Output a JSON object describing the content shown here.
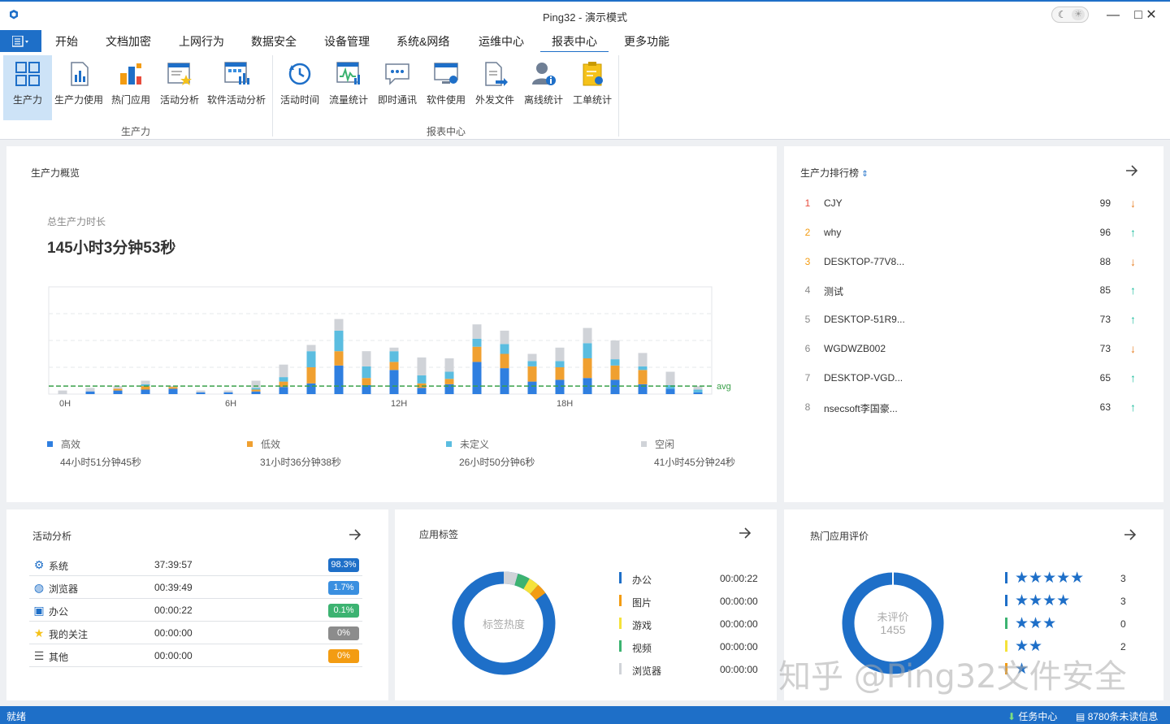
{
  "window": {
    "title": "Ping32 - 演示模式"
  },
  "menu": {
    "tabs": [
      {
        "label": "开始"
      },
      {
        "label": "文档加密"
      },
      {
        "label": "上网行为"
      },
      {
        "label": "数据安全"
      },
      {
        "label": "设备管理"
      },
      {
        "label": "系统&网络"
      },
      {
        "label": "运维中心"
      },
      {
        "label": "报表中心"
      },
      {
        "label": "更多功能"
      }
    ],
    "active": "报表中心"
  },
  "ribbon": {
    "groups": [
      {
        "label": "生产力",
        "buttons": [
          {
            "label": "生产力",
            "icon": "grid-icon"
          },
          {
            "label": "生产力使用",
            "icon": "report-bar-icon"
          },
          {
            "label": "热门应用",
            "icon": "hot-app-icon"
          },
          {
            "label": "活动分析",
            "icon": "activity-star-icon"
          },
          {
            "label": "软件活动分析",
            "icon": "software-activity-icon"
          }
        ]
      },
      {
        "label": "报表中心",
        "buttons": [
          {
            "label": "活动时间",
            "icon": "clock-icon"
          },
          {
            "label": "流量统计",
            "icon": "traffic-icon"
          },
          {
            "label": "即时通讯",
            "icon": "chat-icon"
          },
          {
            "label": "软件使用",
            "icon": "software-use-icon"
          },
          {
            "label": "外发文件",
            "icon": "file-send-icon"
          },
          {
            "label": "离线统计",
            "icon": "offline-user-icon"
          },
          {
            "label": "工单统计",
            "icon": "ticket-icon"
          }
        ]
      }
    ]
  },
  "overview": {
    "title": "生产力概览",
    "subtitle": "总生产力时长",
    "total": "145小时3分钟53秒",
    "legend": [
      {
        "name": "高效",
        "value": "44小时51分钟45秒",
        "color": "#2f7fe0"
      },
      {
        "name": "低效",
        "value": "31小时36分钟38秒",
        "color": "#f0a030"
      },
      {
        "name": "未定义",
        "value": "26小时50分钟6秒",
        "color": "#5bbde0"
      },
      {
        "name": "空闲",
        "value": "41小时45分钟24秒",
        "color": "#d0d3d8"
      }
    ]
  },
  "chart_data": {
    "type": "bar",
    "stacked": true,
    "x": [
      0,
      1,
      2,
      3,
      4,
      5,
      6,
      7,
      8,
      9,
      10,
      11,
      12,
      13,
      14,
      15,
      16,
      17,
      18,
      19,
      20,
      21,
      22,
      23
    ],
    "x_tick_labels": [
      "0H",
      "6H",
      "12H",
      "18H"
    ],
    "series": [
      {
        "name": "高效",
        "color": "#2f7fe0",
        "values": [
          0,
          0.3,
          0.4,
          0.5,
          0.6,
          0.2,
          0.2,
          0.3,
          0.8,
          1.2,
          3.2,
          1.0,
          2.7,
          0.7,
          1.1,
          3.6,
          2.9,
          1.4,
          1.6,
          1.8,
          1.6,
          1.1,
          0.6,
          0.2
        ]
      },
      {
        "name": "低效",
        "color": "#f0a030",
        "values": [
          0,
          0,
          0.2,
          0.4,
          0.2,
          0,
          0,
          0.2,
          0.6,
          1.8,
          1.6,
          0.8,
          0.9,
          0.5,
          0.6,
          1.7,
          1.6,
          1.7,
          1.4,
          2.2,
          1.6,
          1.6,
          0,
          0
        ]
      },
      {
        "name": "未定义",
        "color": "#5bbde0",
        "values": [
          0,
          0,
          0,
          0.2,
          0,
          0,
          0,
          0.2,
          0.5,
          1.8,
          2.3,
          1.3,
          1.2,
          0.9,
          0.8,
          0.9,
          1.1,
          0.6,
          0.7,
          1.7,
          0.7,
          0.4,
          0.4,
          0.3
        ]
      },
      {
        "name": "空闲",
        "color": "#d0d3d8",
        "values": [
          0.4,
          0.4,
          0.3,
          0.4,
          0.1,
          0.2,
          0.2,
          0.8,
          1.4,
          0.7,
          1.3,
          1.7,
          0.4,
          2.0,
          1.5,
          1.6,
          1.5,
          0.8,
          1.5,
          1.7,
          2.1,
          1.5,
          1.5,
          0.4
        ]
      }
    ],
    "ylim": [
      0,
      12
    ],
    "avg": 0.9,
    "avg_label": "avg",
    "grid": true
  },
  "ranking": {
    "title": "生产力排行榜",
    "rows": [
      {
        "no": "1",
        "name": "CJY",
        "score": "99",
        "trend": "down"
      },
      {
        "no": "2",
        "name": "why",
        "score": "96",
        "trend": "up"
      },
      {
        "no": "3",
        "name": "DESKTOP-77V8...",
        "score": "88",
        "trend": "down"
      },
      {
        "no": "4",
        "name": "测试",
        "score": "85",
        "trend": "up"
      },
      {
        "no": "5",
        "name": "DESKTOP-51R9...",
        "score": "73",
        "trend": "up"
      },
      {
        "no": "6",
        "name": "WGDWZB002",
        "score": "73",
        "trend": "down"
      },
      {
        "no": "7",
        "name": "DESKTOP-VGD...",
        "score": "65",
        "trend": "up"
      },
      {
        "no": "8",
        "name": "nsecsoft李国豪...",
        "score": "63",
        "trend": "up"
      }
    ]
  },
  "activity": {
    "title": "活动分析",
    "rows": [
      {
        "name": "系统",
        "time": "37:39:57",
        "pct": "98.3%",
        "color": "#1e6fc8",
        "icon": "gears-icon"
      },
      {
        "name": "浏览器",
        "time": "00:39:49",
        "pct": "1.7%",
        "color": "#3a8fe0",
        "icon": "globe-icon"
      },
      {
        "name": "办公",
        "time": "00:00:22",
        "pct": "0.1%",
        "color": "#3cb371",
        "icon": "office-icon"
      },
      {
        "name": "我的关注",
        "time": "00:00:00",
        "pct": "0%",
        "color": "#8c8c8c",
        "icon": "star-icon"
      },
      {
        "name": "其他",
        "time": "00:00:00",
        "pct": "0%",
        "color": "#f39c12",
        "icon": "list-icon"
      }
    ]
  },
  "app_tags": {
    "title": "应用标签",
    "center_label": "标签热度",
    "rows": [
      {
        "name": "办公",
        "time": "00:00:22",
        "color": "#1e6fc8"
      },
      {
        "name": "图片",
        "time": "00:00:00",
        "color": "#f39c12"
      },
      {
        "name": "游戏",
        "time": "00:00:00",
        "color": "#f5e23a"
      },
      {
        "name": "视频",
        "time": "00:00:00",
        "color": "#3cb371"
      },
      {
        "name": "浏览器",
        "time": "00:00:00",
        "color": "#d0d3d8"
      }
    ]
  },
  "hot_rating": {
    "title": "热门应用评价",
    "center_label": "未评价",
    "center_value": "1455",
    "rows": [
      {
        "stars": "★★★★★",
        "count": "3",
        "color": "#1e6fc8"
      },
      {
        "stars": "★★★★",
        "count": "3",
        "color": "#1e6fc8"
      },
      {
        "stars": "★★★",
        "count": "0",
        "color": "#3cb371"
      },
      {
        "stars": "★★",
        "count": "2",
        "color": "#f5e23a"
      },
      {
        "stars": "★",
        "count": "",
        "color": "#f39c12"
      }
    ]
  },
  "watermark": "知乎 @Ping32文件安全",
  "status": {
    "left": "就绪",
    "task_center": "任务中心",
    "unread": "8780条未读信息"
  }
}
